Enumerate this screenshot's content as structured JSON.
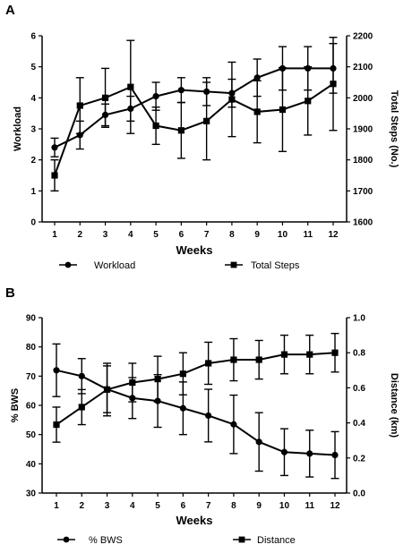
{
  "chart_data": [
    {
      "panel_label": "A",
      "type": "line",
      "xlabel": "Weeks",
      "ylabel_left": "Workload",
      "ylabel_right": "Total Steps (No.)",
      "x": [
        1,
        2,
        3,
        4,
        5,
        6,
        7,
        8,
        9,
        10,
        11,
        12
      ],
      "ylim_left": [
        0,
        6
      ],
      "ylim_right": [
        1600,
        2200
      ],
      "yticks_left": [
        0,
        1,
        2,
        3,
        4,
        5,
        6
      ],
      "yticks_right": [
        1600,
        1700,
        1800,
        1900,
        2000,
        2100,
        2200
      ],
      "grid": false,
      "legend": "bottom",
      "series": [
        {
          "name": "Workload",
          "axis": "left",
          "marker": "circle",
          "values": [
            2.4,
            2.8,
            3.45,
            3.65,
            4.05,
            4.25,
            4.2,
            4.15,
            4.65,
            4.95,
            4.95,
            4.95
          ],
          "error": [
            0.3,
            0.45,
            0.35,
            0.4,
            0.45,
            0.4,
            0.45,
            0.45,
            0.6,
            0.7,
            0.7,
            0.8
          ]
        },
        {
          "name": "Total Steps",
          "axis": "right",
          "marker": "square",
          "values": [
            1750,
            1975,
            2000,
            2035,
            1910,
            1895,
            1925,
            1995,
            1955,
            1962,
            1990,
            2045
          ],
          "error": [
            50,
            90,
            95,
            150,
            60,
            90,
            125,
            120,
            100,
            135,
            110,
            150
          ]
        }
      ]
    },
    {
      "panel_label": "B",
      "type": "line",
      "xlabel": "Weeks",
      "ylabel_left": "% BWS",
      "ylabel_right": "Distance (km)",
      "x": [
        1,
        2,
        3,
        4,
        5,
        6,
        7,
        8,
        9,
        10,
        11,
        12
      ],
      "ylim_left": [
        30,
        90
      ],
      "ylim_right": [
        0.0,
        1.0
      ],
      "yticks_left": [
        30,
        40,
        50,
        60,
        70,
        80,
        90
      ],
      "yticks_right": [
        "0.0",
        "0.2",
        "0.4",
        "0.6",
        "0.8",
        "1.0"
      ],
      "grid": false,
      "legend": "bottom",
      "series": [
        {
          "name": "% BWS",
          "axis": "left",
          "marker": "circle",
          "values": [
            72,
            70,
            65.5,
            62.5,
            61.5,
            59,
            56.5,
            53.5,
            47.5,
            44,
            43.5,
            43
          ],
          "error": [
            9,
            6,
            8,
            7,
            9,
            9,
            9,
            10,
            10,
            8,
            8,
            8
          ]
        },
        {
          "name": "Distance",
          "axis": "right",
          "marker": "square",
          "values": [
            0.39,
            0.49,
            0.59,
            0.63,
            0.65,
            0.68,
            0.74,
            0.76,
            0.76,
            0.79,
            0.79,
            0.8
          ],
          "error": [
            0.1,
            0.1,
            0.15,
            0.11,
            0.13,
            0.12,
            0.12,
            0.12,
            0.11,
            0.11,
            0.11,
            0.11
          ]
        }
      ]
    }
  ]
}
